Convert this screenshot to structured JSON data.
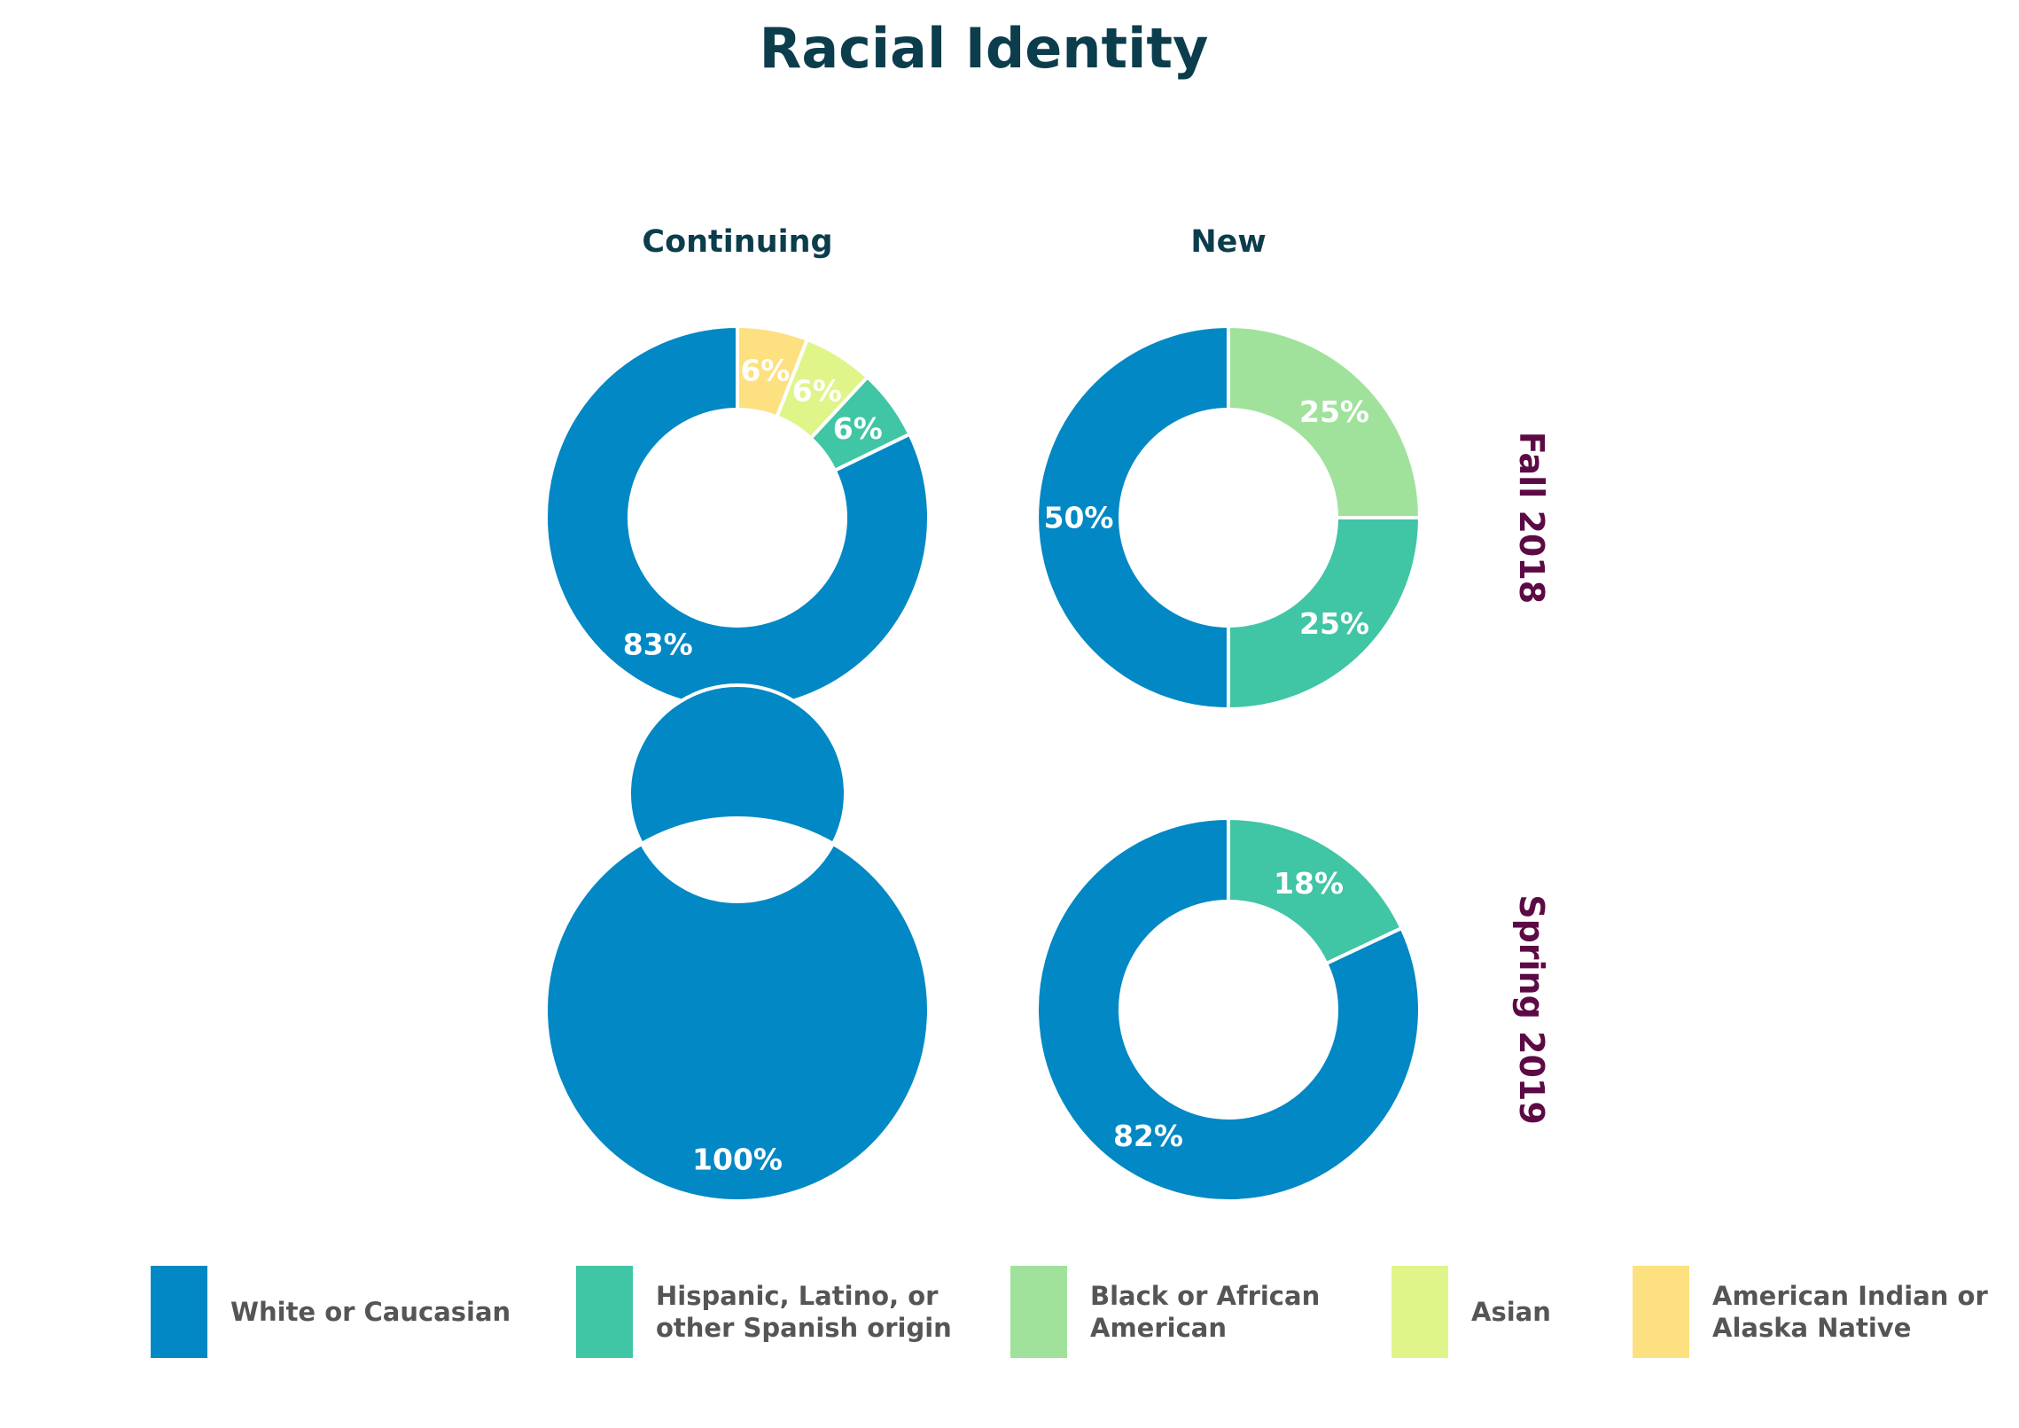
{
  "title": "Racial Identity",
  "columns": [
    "Continuing",
    "New"
  ],
  "rows": [
    "Fall 2018",
    "Spring 2019"
  ],
  "colors": {
    "title": "#0b3d4c",
    "row_heading": "#5c0a45",
    "background": "#ffffff"
  },
  "legend": [
    {
      "label_lines": [
        "White or Caucasian"
      ],
      "color": "#0288c4"
    },
    {
      "label_lines": [
        "Hispanic, Latino, or",
        "other Spanish origin"
      ],
      "color": "#40c5a5"
    },
    {
      "label_lines": [
        "Black or African",
        "American"
      ],
      "color": "#a0e29c"
    },
    {
      "label_lines": [
        "Asian"
      ],
      "color": "#dff58a"
    },
    {
      "label_lines": [
        "American Indian or",
        "Alaska Native"
      ],
      "color": "#fde080"
    }
  ],
  "chart_data": [
    {
      "type": "pie",
      "variant": "donut",
      "column": "Continuing",
      "row": "Fall 2018",
      "slices": [
        {
          "category": "American Indian or Alaska Native",
          "value": 6,
          "label": "6%",
          "color": "#fde080"
        },
        {
          "category": "Asian",
          "value": 6,
          "label": "6%",
          "color": "#dff58a"
        },
        {
          "category": "Hispanic, Latino, or other Spanish origin",
          "value": 6,
          "label": "6%",
          "color": "#40c5a5"
        },
        {
          "category": "White or Caucasian",
          "value": 83,
          "label": "83%",
          "color": "#0288c4"
        }
      ]
    },
    {
      "type": "pie",
      "variant": "donut",
      "column": "New",
      "row": "Fall 2018",
      "slices": [
        {
          "category": "Black or African American",
          "value": 25,
          "label": "25%",
          "color": "#a0e29c"
        },
        {
          "category": "Hispanic, Latino, or other Spanish origin",
          "value": 25,
          "label": "25%",
          "color": "#40c5a5"
        },
        {
          "category": "White or Caucasian",
          "value": 50,
          "label": "50%",
          "color": "#0288c4"
        }
      ]
    },
    {
      "type": "pie",
      "variant": "donut",
      "column": "Continuing",
      "row": "Spring 2019",
      "slices": [
        {
          "category": "White or Caucasian",
          "value": 100,
          "label": "100%",
          "color": "#0288c4"
        }
      ]
    },
    {
      "type": "pie",
      "variant": "donut",
      "column": "New",
      "row": "Spring 2019",
      "slices": [
        {
          "category": "Hispanic, Latino, or other Spanish origin",
          "value": 18,
          "label": "18%",
          "color": "#40c5a5"
        },
        {
          "category": "White or Caucasian",
          "value": 82,
          "label": "82%",
          "color": "#0288c4"
        }
      ]
    }
  ]
}
